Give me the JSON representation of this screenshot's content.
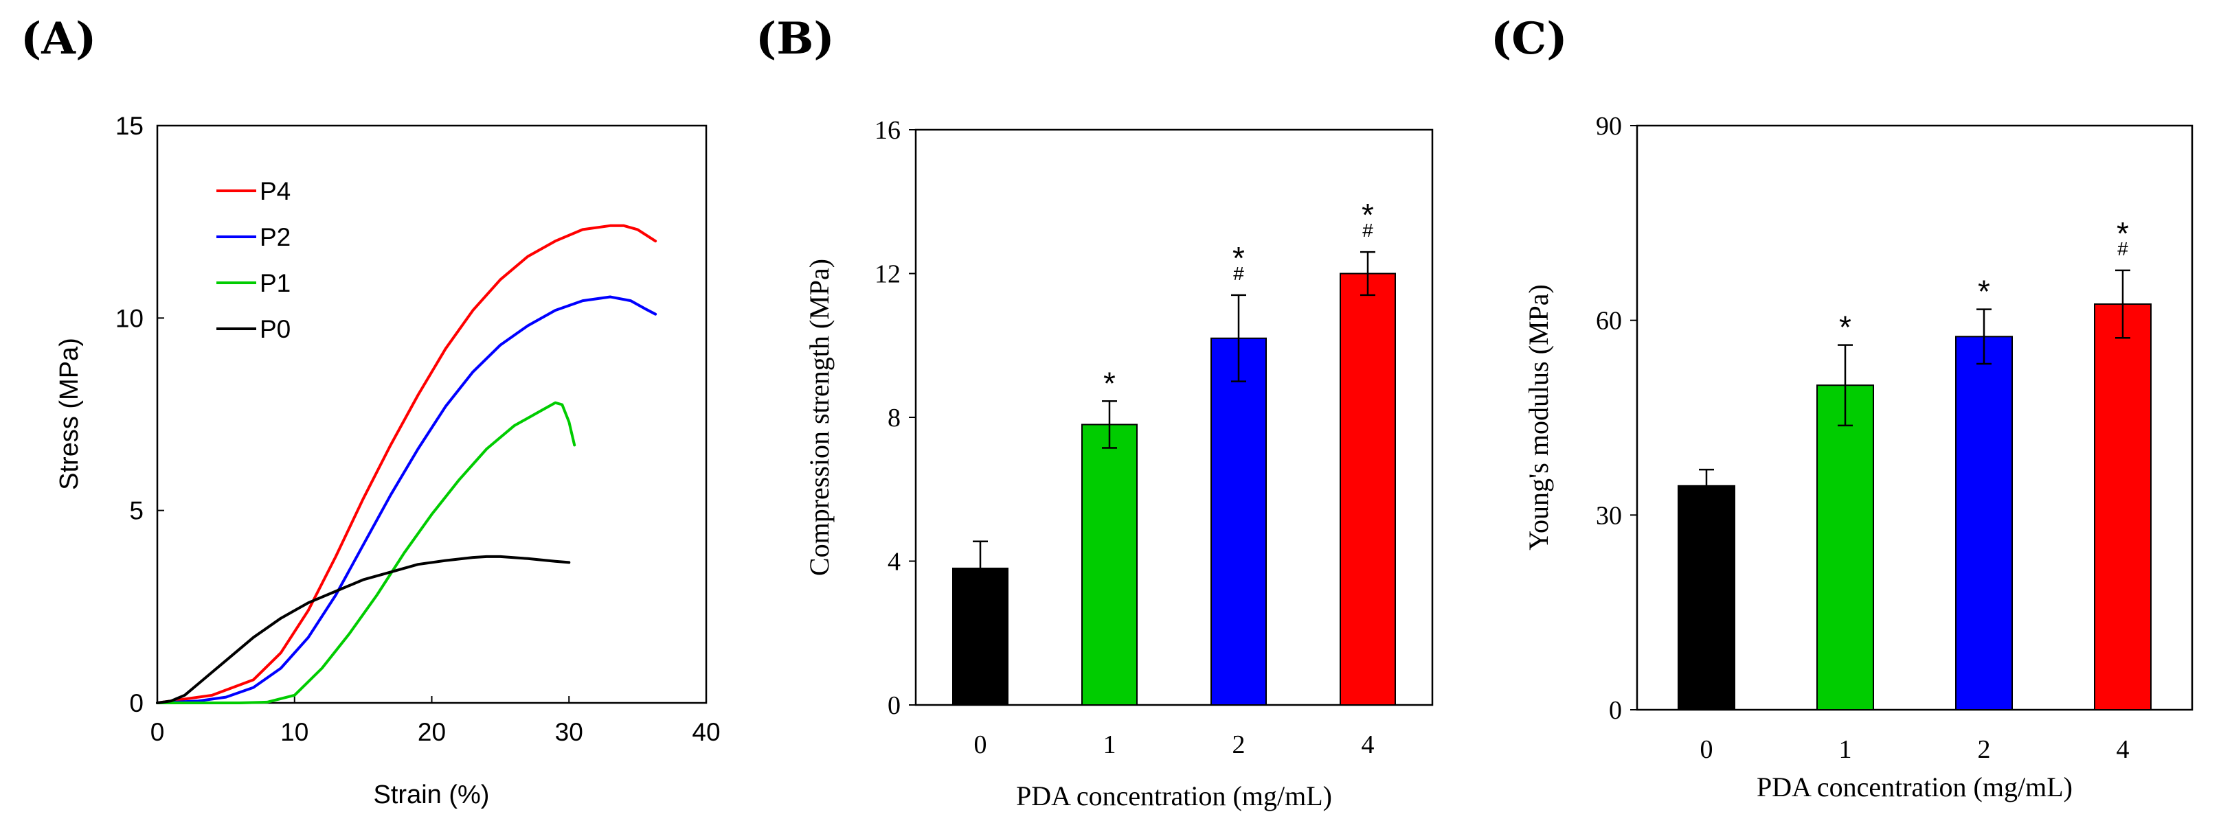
{
  "panel_labels": {
    "a": "(A)",
    "b": "(B)",
    "c": "(C)"
  },
  "colors": {
    "P0": "#000000",
    "P1": "#00cc00",
    "P2": "#0000ff",
    "P4": "#ff0000"
  },
  "chart_data": [
    {
      "id": "A",
      "type": "line",
      "title": "",
      "xlabel": "Strain (%)",
      "ylabel": "Stress (MPa)",
      "xlim": [
        0,
        40
      ],
      "ylim": [
        0,
        15
      ],
      "xticks": [
        "0",
        "10",
        "20",
        "30",
        "40"
      ],
      "yticks": [
        "0",
        "5",
        "10",
        "15"
      ],
      "legend_position": "top-left",
      "grid": false,
      "series": [
        {
          "name": "P4",
          "color": "#ff0000",
          "x": [
            0,
            4,
            7,
            9,
            11,
            13,
            15,
            17,
            19,
            21,
            23,
            25,
            27,
            29,
            31,
            33,
            34,
            35,
            36.3
          ],
          "y": [
            0,
            0.2,
            0.6,
            1.3,
            2.4,
            3.8,
            5.3,
            6.7,
            8.0,
            9.2,
            10.2,
            11.0,
            11.6,
            12.0,
            12.3,
            12.4,
            12.4,
            12.3,
            12.0
          ]
        },
        {
          "name": "P2",
          "color": "#0000ff",
          "x": [
            0,
            3,
            5,
            7,
            9,
            11,
            13,
            15,
            17,
            19,
            21,
            23,
            25,
            27,
            29,
            31,
            33,
            34.5,
            35.5,
            36.3
          ],
          "y": [
            0,
            0.05,
            0.15,
            0.4,
            0.9,
            1.7,
            2.8,
            4.1,
            5.4,
            6.6,
            7.7,
            8.6,
            9.3,
            9.8,
            10.2,
            10.45,
            10.55,
            10.45,
            10.25,
            10.1
          ]
        },
        {
          "name": "P1",
          "color": "#00cc00",
          "x": [
            0,
            6,
            8,
            10,
            12,
            14,
            16,
            18,
            20,
            22,
            24,
            26,
            28,
            29,
            29.5,
            30,
            30.4
          ],
          "y": [
            0,
            0,
            0.02,
            0.2,
            0.9,
            1.8,
            2.8,
            3.9,
            4.9,
            5.8,
            6.6,
            7.2,
            7.6,
            7.8,
            7.75,
            7.3,
            6.7
          ]
        },
        {
          "name": "P0",
          "color": "#000000",
          "x": [
            0,
            1,
            2,
            3,
            4,
            5,
            7,
            9,
            11,
            13,
            15,
            17,
            19,
            21,
            23,
            24,
            25,
            27,
            29,
            30
          ],
          "y": [
            0,
            0.05,
            0.2,
            0.5,
            0.8,
            1.1,
            1.7,
            2.2,
            2.6,
            2.9,
            3.2,
            3.4,
            3.6,
            3.7,
            3.78,
            3.8,
            3.8,
            3.75,
            3.68,
            3.65
          ]
        }
      ]
    },
    {
      "id": "B",
      "type": "bar",
      "title": "",
      "xlabel": "PDA concentration (mg/mL)",
      "ylabel": "Compression strength (MPa)",
      "ylim": [
        0,
        16
      ],
      "yticks": [
        "0",
        "4",
        "8",
        "12",
        "16"
      ],
      "categories": [
        "0",
        "1",
        "2",
        "4"
      ],
      "values": [
        3.8,
        7.8,
        10.2,
        12.0
      ],
      "errors": [
        0.75,
        0.65,
        1.2,
        0.6
      ],
      "colors": [
        "#000000",
        "#00cc00",
        "#0000ff",
        "#ff0000"
      ],
      "star_marks": [
        "",
        "*",
        "*",
        "*"
      ],
      "hash_marks": [
        "",
        "",
        "#",
        "#"
      ]
    },
    {
      "id": "C",
      "type": "bar",
      "title": "",
      "xlabel": "PDA concentration (mg/mL)",
      "ylabel": "Young's modulus (MPa)",
      "ylim": [
        0,
        90
      ],
      "yticks": [
        "0",
        "30",
        "60",
        "90"
      ],
      "categories": [
        "0",
        "1",
        "2",
        "4"
      ],
      "values": [
        34.5,
        50.0,
        57.5,
        62.5
      ],
      "errors": [
        2.5,
        6.2,
        4.2,
        5.2
      ],
      "colors": [
        "#000000",
        "#00cc00",
        "#0000ff",
        "#ff0000"
      ],
      "star_marks": [
        "",
        "*",
        "*",
        "*"
      ],
      "hash_marks": [
        "",
        "",
        "",
        "#"
      ]
    }
  ]
}
